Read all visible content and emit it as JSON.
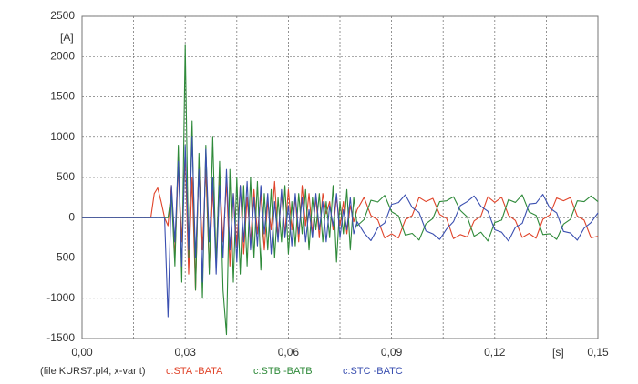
{
  "chart_data": {
    "type": "line",
    "y_label": "[A]",
    "x_label": "[s]",
    "legend_caption": "(file KURS7.pl4; x-var t)",
    "xlim": [
      0,
      0.15
    ],
    "ylim": [
      -1500,
      2500
    ],
    "xticks": [
      {
        "value": 0,
        "label": "0,00"
      },
      {
        "value": 0.03,
        "label": "0,03"
      },
      {
        "value": 0.06,
        "label": "0,06"
      },
      {
        "value": 0.09,
        "label": "0,09"
      },
      {
        "value": 0.12,
        "label": "0,12"
      },
      {
        "value": 0.15,
        "label": "0,15"
      }
    ],
    "xminor": [
      0.015,
      0.045,
      0.075,
      0.105,
      0.135
    ],
    "yticks": [
      -1500,
      -1000,
      -500,
      0,
      500,
      1000,
      1500,
      2000,
      2500
    ],
    "grid": true,
    "x": [
      0,
      0.01,
      0.02,
      0.021,
      0.022,
      0.023,
      0.024,
      0.025,
      0.026,
      0.027,
      0.028,
      0.029,
      0.03,
      0.031,
      0.032,
      0.033,
      0.034,
      0.035,
      0.036,
      0.037,
      0.038,
      0.039,
      0.04,
      0.041,
      0.042,
      0.043,
      0.044,
      0.045,
      0.046,
      0.047,
      0.048,
      0.049,
      0.05,
      0.051,
      0.052,
      0.053,
      0.054,
      0.055,
      0.056,
      0.057,
      0.058,
      0.059,
      0.06,
      0.061,
      0.062,
      0.063,
      0.064,
      0.065,
      0.066,
      0.067,
      0.068,
      0.069,
      0.07,
      0.071,
      0.072,
      0.073,
      0.074,
      0.075,
      0.076,
      0.077,
      0.078,
      0.079,
      0.08,
      0.082,
      0.084,
      0.086,
      0.088,
      0.09,
      0.092,
      0.094,
      0.096,
      0.098,
      0.1,
      0.102,
      0.104,
      0.106,
      0.108,
      0.11,
      0.112,
      0.114,
      0.116,
      0.118,
      0.12,
      0.122,
      0.124,
      0.126,
      0.128,
      0.13,
      0.132,
      0.134,
      0.136,
      0.138,
      0.14,
      0.142,
      0.144,
      0.146,
      0.148,
      0.15
    ],
    "series": [
      {
        "name": "c:STA -BATA",
        "color": "#e0442a",
        "values": [
          0,
          0,
          0,
          300,
          370,
          200,
          0,
          -100,
          400,
          -500,
          650,
          -300,
          800,
          -700,
          500,
          -900,
          700,
          -400,
          600,
          -650,
          350,
          -500,
          550,
          -300,
          450,
          -600,
          300,
          -350,
          400,
          -450,
          250,
          -300,
          350,
          -200,
          300,
          -400,
          200,
          -150,
          450,
          -250,
          300,
          -200,
          350,
          -150,
          250,
          -300,
          400,
          -100,
          300,
          -200,
          250,
          -250,
          300,
          50,
          200,
          -150,
          250,
          -100,
          200,
          -200,
          150,
          -50,
          100,
          252,
          27,
          -27,
          -252,
          -200,
          -252,
          -27,
          27,
          252,
          200,
          240,
          40,
          -10,
          -260,
          -210,
          -240,
          -40,
          20,
          260,
          190,
          255,
          30,
          -35,
          -245,
          -195,
          -255,
          -20,
          35,
          245,
          210,
          250,
          20,
          -30,
          -250,
          -230
        ]
      },
      {
        "name": "c:STB -BATB",
        "color": "#2f8a3a",
        "values": [
          0,
          0,
          0,
          0,
          0,
          0,
          0,
          0,
          300,
          -600,
          900,
          -800,
          2150,
          -500,
          1200,
          -900,
          800,
          -1000,
          900,
          -700,
          1000,
          -600,
          700,
          -900,
          -1450,
          600,
          -800,
          500,
          -700,
          400,
          -600,
          500,
          -500,
          450,
          -650,
          300,
          -400,
          350,
          -500,
          250,
          -300,
          400,
          -450,
          200,
          -350,
          300,
          -200,
          350,
          -400,
          250,
          -150,
          300,
          -300,
          200,
          -250,
          400,
          -550,
          200,
          -200,
          350,
          -400,
          250,
          -100,
          -24,
          217,
          195,
          278,
          75,
          24,
          -217,
          -195,
          -278,
          -75,
          -10,
          200,
          210,
          260,
          90,
          10,
          -230,
          -180,
          -290,
          -60,
          -30,
          225,
          190,
          285,
          70,
          30,
          -210,
          -200,
          -270,
          -80,
          -20,
          210,
          200,
          270,
          200
        ]
      },
      {
        "name": "c:STC -BATC",
        "color": "#3a4fb0",
        "values": [
          0,
          0,
          0,
          0,
          0,
          0,
          0,
          -1230,
          400,
          -300,
          700,
          -600,
          900,
          -400,
          1000,
          -500,
          600,
          -800,
          850,
          -300,
          500,
          -700,
          400,
          -500,
          600,
          -400,
          300,
          -550,
          400,
          -300,
          450,
          -400,
          250,
          -350,
          400,
          -200,
          300,
          -450,
          200,
          -300,
          350,
          -250,
          150,
          -350,
          300,
          -200,
          250,
          -300,
          100,
          -250,
          300,
          -150,
          200,
          -300,
          150,
          -100,
          300,
          -250,
          100,
          -150,
          250,
          -200,
          -50,
          -188,
          -285,
          -127,
          -66,
          165,
          188,
          285,
          127,
          66,
          -165,
          -200,
          -270,
          -140,
          -50,
          150,
          200,
          270,
          140,
          80,
          -150,
          -180,
          -290,
          -120,
          -70,
          170,
          180,
          290,
          120,
          60,
          -170,
          -190,
          -280,
          -130,
          -60,
          60
        ]
      }
    ]
  }
}
